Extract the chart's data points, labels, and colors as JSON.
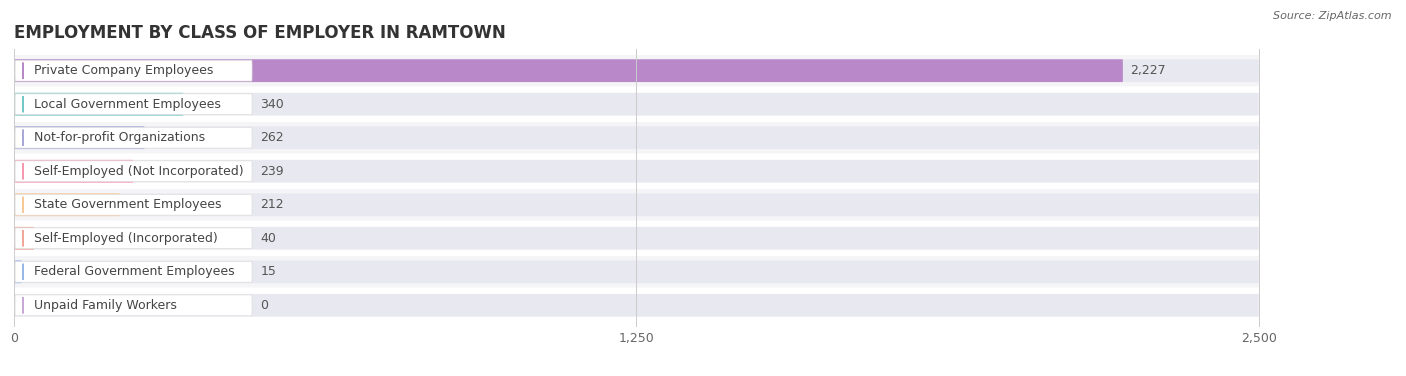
{
  "title": "EMPLOYMENT BY CLASS OF EMPLOYER IN RAMTOWN",
  "source": "Source: ZipAtlas.com",
  "categories": [
    "Private Company Employees",
    "Local Government Employees",
    "Not-for-profit Organizations",
    "Self-Employed (Not Incorporated)",
    "State Government Employees",
    "Self-Employed (Incorporated)",
    "Federal Government Employees",
    "Unpaid Family Workers"
  ],
  "values": [
    2227,
    340,
    262,
    239,
    212,
    40,
    15,
    0
  ],
  "bar_colors": [
    "#b888c8",
    "#72c8c4",
    "#a8a8d8",
    "#f898b0",
    "#f8c898",
    "#f0a898",
    "#98b8e8",
    "#c8a8d8"
  ],
  "xlim_max": 2500,
  "xticks": [
    0,
    1250,
    2500
  ],
  "background_color": "#ffffff",
  "row_bg_light": "#f0f0f5",
  "row_bar_bg": "#e8e8f0",
  "title_fontsize": 12,
  "label_fontsize": 9,
  "value_fontsize": 9,
  "source_fontsize": 8
}
